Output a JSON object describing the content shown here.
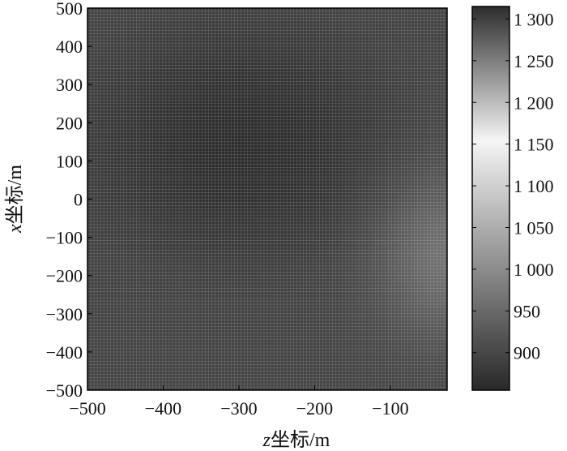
{
  "chart_data": {
    "type": "heatmap",
    "colormap": "gray",
    "grid": true,
    "xlabel": {
      "var": "z",
      "text": "坐标/m"
    },
    "ylabel": {
      "var": "x",
      "text": "坐标/m"
    },
    "xlim": [
      -500,
      -25
    ],
    "ylim": [
      -500,
      500
    ],
    "x_ticks": [
      -500,
      -400,
      -300,
      -200,
      -100
    ],
    "x_tick_labels": [
      "−500",
      "−400",
      "−300",
      "−200",
      "−100"
    ],
    "y_ticks": [
      -500,
      -400,
      -300,
      -200,
      -100,
      0,
      100,
      200,
      300,
      400,
      500
    ],
    "y_tick_labels": [
      "−500",
      "−400",
      "−300",
      "−200",
      "−100",
      "0",
      "100",
      "200",
      "300",
      "400",
      "500"
    ],
    "colorbar": {
      "range": [
        855,
        1315
      ],
      "ticks": [
        900,
        950,
        1000,
        1050,
        1100,
        1150,
        1200,
        1250,
        1300
      ],
      "tick_labels": [
        "900",
        "950",
        "1 000",
        "1 050",
        "1 100",
        "1 150",
        "1 200",
        "1 250",
        "1 300"
      ]
    },
    "field": {
      "baseline_value": 880,
      "minimum": {
        "z": -300,
        "x": 150,
        "value": 860
      },
      "edge_high": {
        "z": -25,
        "x": -150,
        "value": 945
      }
    }
  }
}
